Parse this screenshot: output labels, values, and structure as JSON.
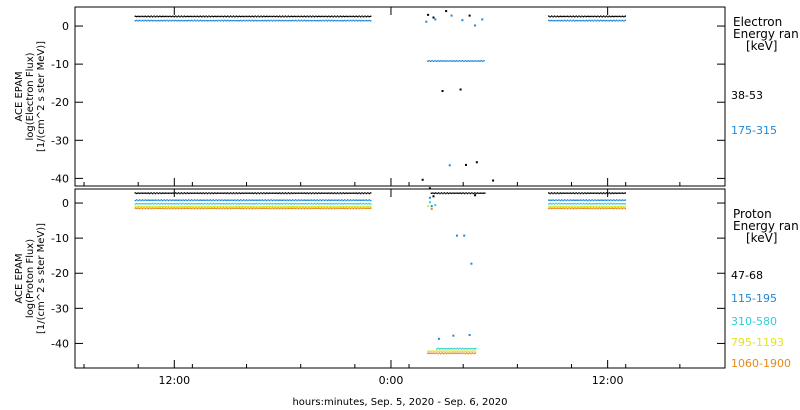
{
  "chart_data": [
    {
      "type": "scatter",
      "panel": "electron",
      "ylabel_lines": [
        "ACE EPAM",
        "log(Electron Flux)",
        "[1/(cm^2 s ster MeV)]"
      ],
      "yticks": [
        0,
        -10,
        -20,
        -30,
        -40
      ],
      "ylim": [
        -42,
        5
      ],
      "legend_title_lines": [
        "Electron",
        "Energy ran",
        "[keV]"
      ],
      "series": [
        {
          "name": "38-53",
          "color": "#000000",
          "segments": [
            {
              "x": [
                -14.2,
                -1.1
              ],
              "y": 2.7
            },
            {
              "x": [
                8.7,
                13.0
              ],
              "y": 2.7
            }
          ],
          "points": [
            [
              2.0,
              3.2
            ],
            [
              2.3,
              2.5
            ],
            [
              3.0,
              4.2
            ],
            [
              4.3,
              3.0
            ],
            [
              2.8,
              -16.8
            ],
            [
              3.8,
              -16.4
            ],
            [
              4.1,
              -36.2
            ],
            [
              4.7,
              -35.5
            ],
            [
              1.7,
              -40.1
            ],
            [
              5.6,
              -40.3
            ]
          ]
        },
        {
          "name": "175-315",
          "color": "#1e88d8",
          "segments": [
            {
              "x": [
                -14.2,
                -1.1
              ],
              "y": 1.6
            },
            {
              "x": [
                8.7,
                13.0
              ],
              "y": 1.6
            },
            {
              "x": [
                2.0,
                5.2
              ],
              "y": -9.0
            }
          ],
          "points": [
            [
              1.9,
              1.4
            ],
            [
              2.4,
              2.0
            ],
            [
              3.3,
              3.0
            ],
            [
              3.9,
              1.8
            ],
            [
              4.6,
              0.4
            ],
            [
              5.0,
              2.0
            ],
            [
              3.2,
              -36.3
            ]
          ]
        }
      ]
    },
    {
      "type": "scatter",
      "panel": "proton",
      "ylabel_lines": [
        "ACE EPAM",
        "log(Proton Flux)",
        "[1/(cm^2 s ster MeV)]"
      ],
      "yticks": [
        0,
        -10,
        -20,
        -30,
        -40
      ],
      "ylim": [
        -47,
        4
      ],
      "legend_title_lines": [
        "Proton",
        "Energy ran",
        "[keV]"
      ],
      "series": [
        {
          "name": "47-68",
          "color": "#000000",
          "segments": [
            {
              "x": [
                -14.2,
                -1.1
              ],
              "y": 3.0
            },
            {
              "x": [
                8.7,
                13.0
              ],
              "y": 3.0
            },
            {
              "x": [
                2.2,
                5.2
              ],
              "y": 3.0
            }
          ],
          "points": [
            [
              2.1,
              4.5
            ],
            [
              2.3,
              2.2
            ],
            [
              4.6,
              2.5
            ]
          ]
        },
        {
          "name": "115-195",
          "color": "#1e88d8",
          "segments": [
            {
              "x": [
                -14.2,
                -1.1
              ],
              "y": 1.0
            },
            {
              "x": [
                8.7,
                13.0
              ],
              "y": 1.0
            }
          ],
          "points": [
            [
              2.1,
              1.8
            ],
            [
              2.2,
              -0.6
            ],
            [
              3.6,
              -9.0
            ],
            [
              4.0,
              -9.0
            ],
            [
              4.4,
              -17.0
            ],
            [
              2.6,
              -38.4
            ],
            [
              3.4,
              -37.5
            ],
            [
              4.3,
              -37.3
            ]
          ]
        },
        {
          "name": "310-580",
          "color": "#2ad1d9",
          "segments": [
            {
              "x": [
                -14.2,
                -1.1
              ],
              "y": 0.0
            },
            {
              "x": [
                8.7,
                13.0
              ],
              "y": 0.0
            },
            {
              "x": [
                2.5,
                4.7
              ],
              "y": -41.3
            }
          ],
          "points": [
            [
              2.1,
              0.5
            ],
            [
              2.4,
              -0.3
            ]
          ]
        },
        {
          "name": "795-1193",
          "color": "#e2e22a",
          "segments": [
            {
              "x": [
                -14.2,
                -1.1
              ],
              "y": -0.8
            },
            {
              "x": [
                8.7,
                13.0
              ],
              "y": -0.8
            },
            {
              "x": [
                2.0,
                4.7
              ],
              "y": -42.0
            }
          ],
          "points": [
            [
              2.0,
              -0.6
            ]
          ]
        },
        {
          "name": "1060-1900",
          "color": "#e88a14",
          "segments": [
            {
              "x": [
                -14.2,
                -1.1
              ],
              "y": -1.3
            },
            {
              "x": [
                8.7,
                13.0
              ],
              "y": -1.3
            },
            {
              "x": [
                2.0,
                4.7
              ],
              "y": -42.6
            }
          ],
          "points": [
            [
              2.2,
              -1.4
            ]
          ]
        }
      ]
    }
  ],
  "x_axis": {
    "xlim": [
      -17.5,
      18.5
    ],
    "tick_hours": [
      -12,
      0,
      12
    ],
    "tick_labels": [
      "12:00",
      "0:00",
      "12:00"
    ],
    "xlabel": "hours:minutes, Sep.  5, 2020 - Sep.  6, 2020"
  }
}
